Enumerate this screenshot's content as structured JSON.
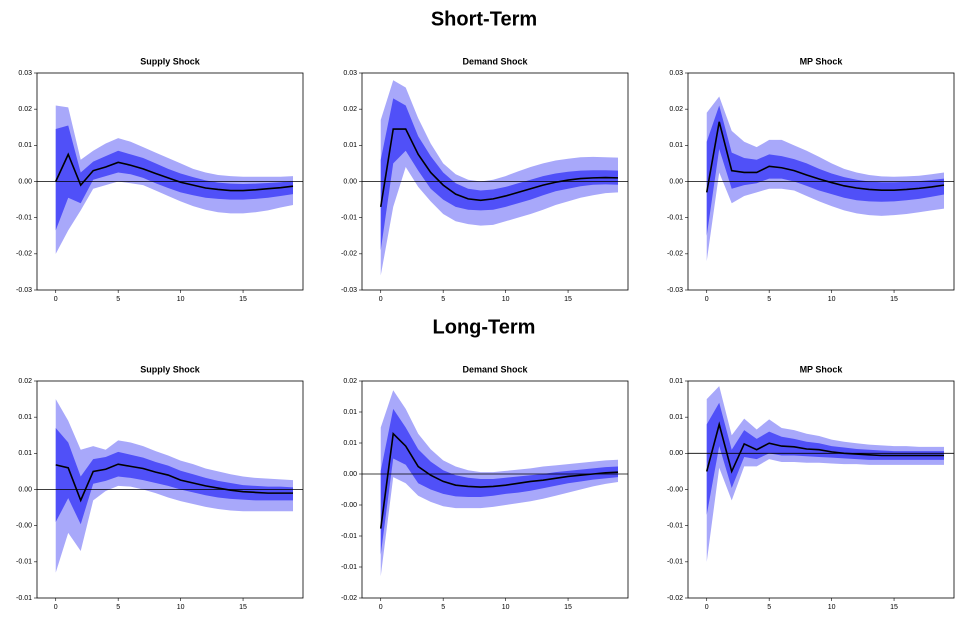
{
  "sections": [
    "Short-Term",
    "Long-Term"
  ],
  "chart_data": [
    {
      "type": "line",
      "title": "Supply Shock",
      "x": [
        0,
        1,
        2,
        3,
        4,
        5,
        6,
        7,
        8,
        9,
        10,
        11,
        12,
        13,
        14,
        15,
        16,
        17,
        18,
        19
      ],
      "color": "#000000",
      "values": [
        0,
        0.0075,
        -0.001,
        0.003,
        0.004,
        0.0053,
        0.0045,
        0.0035,
        0.0022,
        0.001,
        -0.0002,
        -0.001,
        -0.0018,
        -0.0022,
        -0.0025,
        -0.0025,
        -0.0023,
        -0.002,
        -0.0017,
        -0.0013
      ],
      "bands": [
        {
          "color": "#a8a8fa",
          "upper": [
            0.021,
            0.0205,
            0.006,
            0.0085,
            0.0105,
            0.012,
            0.011,
            0.0095,
            0.008,
            0.0065,
            0.005,
            0.0035,
            0.0025,
            0.0018,
            0.0015,
            0.0013,
            0.0013,
            0.0013,
            0.0013,
            0.0015
          ],
          "lower": [
            -0.02,
            -0.0135,
            -0.008,
            -0.002,
            -0.001,
            0,
            -0.0005,
            -0.001,
            -0.0025,
            -0.004,
            -0.0055,
            -0.0068,
            -0.0078,
            -0.0085,
            -0.0088,
            -0.0088,
            -0.0085,
            -0.008,
            -0.0072,
            -0.0065
          ]
        },
        {
          "color": "#5050f8",
          "upper": [
            0.0145,
            0.0155,
            0.0025,
            0.0055,
            0.007,
            0.0085,
            0.0075,
            0.0065,
            0.005,
            0.0035,
            0.0022,
            0.0012,
            0.0003,
            -0.0003,
            -0.0006,
            -0.0007,
            -0.0006,
            -0.0004,
            -0.0002,
            0.0001
          ],
          "lower": [
            -0.0135,
            -0.0045,
            -0.006,
            0.0005,
            0.0015,
            0.0025,
            0.002,
            0.001,
            -0.0005,
            -0.0018,
            -0.003,
            -0.0038,
            -0.0045,
            -0.0048,
            -0.005,
            -0.005,
            -0.0048,
            -0.0045,
            -0.004,
            -0.0035
          ]
        }
      ],
      "xlim": [
        -1.5,
        19.8
      ],
      "xticks": [
        0,
        5,
        10,
        15
      ],
      "ylim": [
        -0.03,
        0.03
      ],
      "yticks": [
        {
          "value": -0.03,
          "label": "-0.03"
        },
        {
          "value": -0.02,
          "label": "-0.02"
        },
        {
          "value": -0.01,
          "label": "-0.01"
        },
        {
          "value": 0,
          "label": "0.00"
        },
        {
          "value": 0.01,
          "label": "0.01"
        },
        {
          "value": 0.02,
          "label": "0.02"
        },
        {
          "value": 0.03,
          "label": "0.03"
        }
      ],
      "zero_line": true
    },
    {
      "type": "line",
      "title": "Demand Shock",
      "x": [
        0,
        1,
        2,
        3,
        4,
        5,
        6,
        7,
        8,
        9,
        10,
        11,
        12,
        13,
        14,
        15,
        16,
        17,
        18,
        19
      ],
      "color": "#000000",
      "values": [
        -0.007,
        0.0145,
        0.0145,
        0.0075,
        0.0025,
        -0.001,
        -0.0035,
        -0.0048,
        -0.0052,
        -0.0048,
        -0.004,
        -0.003,
        -0.002,
        -0.001,
        -0.0002,
        0.0004,
        0.0008,
        0.001,
        0.0011,
        0.001
      ],
      "bands": [
        {
          "color": "#a8a8fa",
          "upper": [
            0.017,
            0.028,
            0.026,
            0.0175,
            0.0105,
            0.005,
            0.002,
            0.0005,
            0,
            0.0005,
            0.0015,
            0.0028,
            0.004,
            0.005,
            0.0058,
            0.0063,
            0.0067,
            0.0068,
            0.0067,
            0.0066
          ],
          "lower": [
            -0.026,
            -0.007,
            0.004,
            -0.0015,
            -0.0055,
            -0.009,
            -0.011,
            -0.0118,
            -0.0122,
            -0.012,
            -0.011,
            -0.01,
            -0.009,
            -0.0078,
            -0.0065,
            -0.0055,
            -0.0045,
            -0.0038,
            -0.0032,
            -0.003
          ]
        },
        {
          "color": "#5050f8",
          "upper": [
            0.006,
            0.023,
            0.021,
            0.0125,
            0.007,
            0.0025,
            -0.0005,
            -0.002,
            -0.0025,
            -0.0022,
            -0.0015,
            -0.0005,
            0.0005,
            0.0015,
            0.0022,
            0.0027,
            0.003,
            0.0031,
            0.0031,
            0.003
          ],
          "lower": [
            -0.019,
            0.005,
            0.0085,
            0.003,
            -0.002,
            -0.005,
            -0.007,
            -0.0078,
            -0.008,
            -0.0078,
            -0.007,
            -0.006,
            -0.005,
            -0.0038,
            -0.0027,
            -0.002,
            -0.0013,
            -0.0009,
            -0.0008,
            -0.0009
          ]
        }
      ],
      "xlim": [
        -1.5,
        19.8
      ],
      "xticks": [
        0,
        5,
        10,
        15
      ],
      "ylim": [
        -0.03,
        0.03
      ],
      "yticks": [
        {
          "value": -0.03,
          "label": "-0.03"
        },
        {
          "value": -0.02,
          "label": "-0.02"
        },
        {
          "value": -0.01,
          "label": "-0.01"
        },
        {
          "value": 0,
          "label": "0.00"
        },
        {
          "value": 0.01,
          "label": "0.01"
        },
        {
          "value": 0.02,
          "label": "0.02"
        },
        {
          "value": 0.03,
          "label": "0.03"
        }
      ],
      "zero_line": true
    },
    {
      "type": "line",
      "title": "MP Shock",
      "x": [
        0,
        1,
        2,
        3,
        4,
        5,
        6,
        7,
        8,
        9,
        10,
        11,
        12,
        13,
        14,
        15,
        16,
        17,
        18,
        19
      ],
      "color": "#000000",
      "values": [
        -0.003,
        0.0165,
        0.003,
        0.0025,
        0.0025,
        0.0042,
        0.0038,
        0.003,
        0.0018,
        0.0007,
        -0.0003,
        -0.0012,
        -0.0018,
        -0.0022,
        -0.0024,
        -0.0024,
        -0.0022,
        -0.0019,
        -0.0015,
        -0.001
      ],
      "bands": [
        {
          "color": "#a8a8fa",
          "upper": [
            0.019,
            0.0235,
            0.014,
            0.011,
            0.0095,
            0.0115,
            0.0115,
            0.01,
            0.0085,
            0.0068,
            0.005,
            0.0035,
            0.0025,
            0.0018,
            0.0014,
            0.0013,
            0.0014,
            0.0016,
            0.002,
            0.0025
          ],
          "lower": [
            -0.022,
            0.0025,
            -0.006,
            -0.004,
            -0.003,
            -0.002,
            -0.002,
            -0.0025,
            -0.004,
            -0.0055,
            -0.0068,
            -0.008,
            -0.0088,
            -0.0093,
            -0.0095,
            -0.0093,
            -0.009,
            -0.0085,
            -0.008,
            -0.0075
          ]
        },
        {
          "color": "#5050f8",
          "upper": [
            0.011,
            0.021,
            0.008,
            0.0065,
            0.006,
            0.0075,
            0.007,
            0.0062,
            0.005,
            0.0035,
            0.0022,
            0.0012,
            0.0005,
            0,
            -0.0002,
            -0.0002,
            -0.0001,
            0.0001,
            0.0004,
            0.0008
          ],
          "lower": [
            -0.015,
            0.009,
            -0.002,
            -0.001,
            -0.0005,
            0.0008,
            0.0008,
            0,
            -0.0012,
            -0.0025,
            -0.0035,
            -0.0045,
            -0.0052,
            -0.0055,
            -0.0056,
            -0.0055,
            -0.0052,
            -0.0048,
            -0.0042,
            -0.0036
          ]
        }
      ],
      "xlim": [
        -1.5,
        19.8
      ],
      "xticks": [
        0,
        5,
        10,
        15
      ],
      "ylim": [
        -0.03,
        0.03
      ],
      "yticks": [
        {
          "value": -0.03,
          "label": "-0.03"
        },
        {
          "value": -0.02,
          "label": "-0.02"
        },
        {
          "value": -0.01,
          "label": "-0.01"
        },
        {
          "value": 0,
          "label": "0.00"
        },
        {
          "value": 0.01,
          "label": "0.01"
        },
        {
          "value": 0.02,
          "label": "0.02"
        },
        {
          "value": 0.03,
          "label": "0.03"
        }
      ],
      "zero_line": true
    },
    {
      "type": "line",
      "title": "Supply Shock",
      "x": [
        0,
        1,
        2,
        3,
        4,
        5,
        6,
        7,
        8,
        9,
        10,
        11,
        12,
        13,
        14,
        15,
        16,
        17,
        18,
        19
      ],
      "color": "#000000",
      "values": [
        0.0034,
        0.003,
        -0.0015,
        0.0025,
        0.0028,
        0.0035,
        0.0032,
        0.0029,
        0.0024,
        0.002,
        0.0013,
        0.0009,
        0.0005,
        0.0002,
        -0.0001,
        -0.0003,
        -0.0004,
        -0.0005,
        -0.0005,
        -0.0005
      ],
      "bands": [
        {
          "color": "#a8a8fa",
          "upper": [
            0.0125,
            0.0095,
            0.0055,
            0.006,
            0.0055,
            0.0068,
            0.0065,
            0.006,
            0.0053,
            0.0047,
            0.004,
            0.0035,
            0.0029,
            0.0025,
            0.0021,
            0.0018,
            0.0016,
            0.0015,
            0.0014,
            0.0013
          ],
          "lower": [
            -0.0115,
            -0.006,
            -0.0085,
            -0.0015,
            -0.0002,
            0.0005,
            0.0004,
            0,
            -0.0005,
            -0.0011,
            -0.0016,
            -0.002,
            -0.0024,
            -0.0027,
            -0.0029,
            -0.003,
            -0.003,
            -0.003,
            -0.003,
            -0.003
          ]
        },
        {
          "color": "#5050f8",
          "upper": [
            0.0085,
            0.0065,
            0.0018,
            0.0042,
            0.0045,
            0.0052,
            0.0048,
            0.0044,
            0.0038,
            0.0033,
            0.0026,
            0.0021,
            0.0016,
            0.0012,
            0.0009,
            0.0006,
            0.0005,
            0.0004,
            0.0004,
            0.0003
          ],
          "lower": [
            -0.0045,
            -0.0012,
            -0.0048,
            0.0008,
            0.0012,
            0.0018,
            0.0016,
            0.0013,
            0.0009,
            0.0005,
            0,
            -0.0004,
            -0.0008,
            -0.0011,
            -0.0013,
            -0.0014,
            -0.0015,
            -0.0015,
            -0.0015,
            -0.0015
          ]
        }
      ],
      "xlim": [
        -1.5,
        19.8
      ],
      "xticks": [
        0,
        5,
        10,
        15
      ],
      "ylim": [
        -0.015,
        0.015
      ],
      "yticks": [
        {
          "value": -0.015,
          "label": "-0.01"
        },
        {
          "value": -0.01,
          "label": "-0.01"
        },
        {
          "value": -0.005,
          "label": "-0.00"
        },
        {
          "value": 0,
          "label": "0.00"
        },
        {
          "value": 0.005,
          "label": "0.01"
        },
        {
          "value": 0.01,
          "label": "0.01"
        },
        {
          "value": 0.015,
          "label": "0.02"
        }
      ],
      "zero_line": true
    },
    {
      "type": "line",
      "title": "Demand Shock",
      "x": [
        0,
        1,
        2,
        3,
        4,
        5,
        6,
        7,
        8,
        9,
        10,
        11,
        12,
        13,
        14,
        15,
        16,
        17,
        18,
        19
      ],
      "color": "#000000",
      "values": [
        -0.0088,
        0.0065,
        0.0045,
        0.0012,
        -0.0002,
        -0.0012,
        -0.0018,
        -0.002,
        -0.0021,
        -0.002,
        -0.0018,
        -0.0015,
        -0.0012,
        -0.001,
        -0.0007,
        -0.0004,
        -0.0002,
        0,
        0.0002,
        0.0003
      ],
      "bands": [
        {
          "color": "#a8a8fa",
          "upper": [
            0.0075,
            0.0135,
            0.0105,
            0.0065,
            0.004,
            0.0022,
            0.0012,
            0.0006,
            0.0003,
            0.0003,
            0.0005,
            0.0007,
            0.0009,
            0.0012,
            0.0014,
            0.0016,
            0.0018,
            0.002,
            0.0022,
            0.0023
          ],
          "lower": [
            -0.0165,
            -0.0005,
            -0.0015,
            -0.0035,
            -0.0045,
            -0.0052,
            -0.0055,
            -0.0055,
            -0.0055,
            -0.0053,
            -0.005,
            -0.0047,
            -0.0044,
            -0.004,
            -0.0035,
            -0.003,
            -0.0025,
            -0.002,
            -0.0016,
            -0.0013
          ]
        },
        {
          "color": "#5050f8",
          "upper": [
            0.0005,
            0.0105,
            0.0075,
            0.004,
            0.002,
            0.0006,
            -0.0002,
            -0.0006,
            -0.0008,
            -0.0008,
            -0.0006,
            -0.0004,
            -0.0002,
            0,
            0.0003,
            0.0005,
            0.0007,
            0.0009,
            0.0011,
            0.0012
          ],
          "lower": [
            -0.013,
            0.0025,
            0.0015,
            -0.0015,
            -0.0025,
            -0.0032,
            -0.0036,
            -0.0037,
            -0.0037,
            -0.0035,
            -0.0032,
            -0.003,
            -0.0027,
            -0.0023,
            -0.0019,
            -0.0015,
            -0.0012,
            -0.0009,
            -0.0007,
            -0.0005
          ]
        }
      ],
      "xlim": [
        -1.5,
        19.8
      ],
      "xticks": [
        0,
        5,
        10,
        15
      ],
      "ylim": [
        -0.02,
        0.015
      ],
      "yticks": [
        {
          "value": -0.02,
          "label": "-0.02"
        },
        {
          "value": -0.015,
          "label": "-0.01"
        },
        {
          "value": -0.01,
          "label": "-0.01"
        },
        {
          "value": -0.005,
          "label": "-0.00"
        },
        {
          "value": 0,
          "label": "0.00"
        },
        {
          "value": 0.005,
          "label": "0.01"
        },
        {
          "value": 0.01,
          "label": "0.01"
        },
        {
          "value": 0.015,
          "label": "0.02"
        }
      ],
      "zero_line": true
    },
    {
      "type": "line",
      "title": "MP Shock",
      "x": [
        0,
        1,
        2,
        3,
        4,
        5,
        6,
        7,
        8,
        9,
        10,
        11,
        12,
        13,
        14,
        15,
        16,
        17,
        18,
        19
      ],
      "color": "#000000",
      "values": [
        -0.0025,
        0.004,
        -0.0025,
        0.0013,
        0.0005,
        0.0014,
        0.001,
        0.0009,
        0.0006,
        0.0005,
        0.0002,
        0,
        -0.0001,
        -0.0002,
        -0.0003,
        -0.0003,
        -0.0003,
        -0.0003,
        -0.0003,
        -0.0003
      ],
      "bands": [
        {
          "color": "#a8a8fa",
          "upper": [
            0.0075,
            0.0093,
            0.0025,
            0.0048,
            0.0033,
            0.0047,
            0.0035,
            0.0032,
            0.0027,
            0.0024,
            0.0019,
            0.0016,
            0.0014,
            0.0012,
            0.0011,
            0.001,
            0.001,
            0.0009,
            0.0009,
            0.0009
          ],
          "lower": [
            -0.015,
            -0.002,
            -0.0065,
            -0.0018,
            -0.0018,
            -0.0008,
            -0.0012,
            -0.0012,
            -0.0013,
            -0.0013,
            -0.0014,
            -0.0015,
            -0.0015,
            -0.0016,
            -0.0016,
            -0.0016,
            -0.0016,
            -0.0016,
            -0.0016,
            -0.0016
          ]
        },
        {
          "color": "#5050f8",
          "upper": [
            0.004,
            0.007,
            0.0005,
            0.0032,
            0.002,
            0.003,
            0.0023,
            0.002,
            0.0016,
            0.0014,
            0.001,
            0.0008,
            0.0006,
            0.0005,
            0.0004,
            0.0003,
            0.0003,
            0.0003,
            0.0003,
            0.0003
          ],
          "lower": [
            -0.0085,
            0.001,
            -0.0048,
            -0.0005,
            -0.0008,
            0,
            -0.0003,
            -0.0003,
            -0.0004,
            -0.0005,
            -0.0006,
            -0.0007,
            -0.0008,
            -0.0009,
            -0.0009,
            -0.0009,
            -0.0009,
            -0.0009,
            -0.0009,
            -0.0009
          ]
        }
      ],
      "xlim": [
        -1.5,
        19.8
      ],
      "xticks": [
        0,
        5,
        10,
        15
      ],
      "ylim": [
        -0.02,
        0.01
      ],
      "yticks": [
        {
          "value": -0.02,
          "label": "-0.02"
        },
        {
          "value": -0.015,
          "label": "-0.01"
        },
        {
          "value": -0.01,
          "label": "-0.01"
        },
        {
          "value": -0.005,
          "label": "-0.00"
        },
        {
          "value": 0,
          "label": "0.00"
        },
        {
          "value": 0.005,
          "label": "0.01"
        },
        {
          "value": 0.01,
          "label": "0.01"
        }
      ],
      "zero_line": true
    }
  ]
}
